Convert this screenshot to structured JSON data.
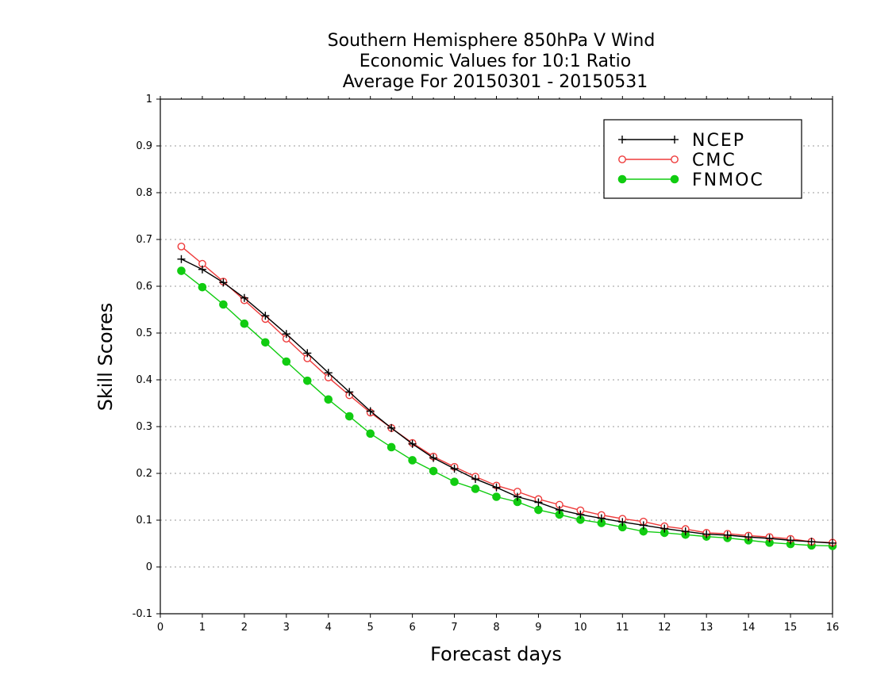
{
  "chart_data": {
    "type": "line",
    "title": "Southern Hemisphere 850hPa V Wind",
    "subtitle_lines": [
      "Economic Values for 10:1 Ratio",
      "Average For 20150301 - 20150531"
    ],
    "xlabel": "Forecast days",
    "ylabel": "Skill Scores",
    "xlim": [
      0,
      16
    ],
    "ylim": [
      -0.1,
      1
    ],
    "x_ticks": [
      0,
      1,
      2,
      3,
      4,
      5,
      6,
      7,
      8,
      9,
      10,
      11,
      12,
      13,
      14,
      15,
      16
    ],
    "y_ticks": [
      -0.1,
      0,
      0.1,
      0.2,
      0.3,
      0.4,
      0.5,
      0.6,
      0.7,
      0.8,
      0.9,
      1
    ],
    "y_tick_labels": [
      "-0.1",
      "0",
      "0.1",
      "0.2",
      "0.3",
      "0.4",
      "0.5",
      "0.6",
      "0.7",
      "0.8",
      "0.9",
      "1"
    ],
    "grid": true,
    "legend_position": "top-right",
    "x": [
      0.5,
      1,
      1.5,
      2,
      2.5,
      3,
      3.5,
      4,
      4.5,
      5,
      5.5,
      6,
      6.5,
      7,
      7.5,
      8,
      8.5,
      9,
      9.5,
      10,
      10.5,
      11,
      11.5,
      12,
      12.5,
      13,
      13.5,
      14,
      14.5,
      15,
      15.5,
      16
    ],
    "series": [
      {
        "name": "NCEP",
        "color": "#000000",
        "marker": "plus",
        "values": [
          0.658,
          0.636,
          0.608,
          0.575,
          0.537,
          0.498,
          0.457,
          0.415,
          0.374,
          0.333,
          0.297,
          0.263,
          0.233,
          0.21,
          0.188,
          0.17,
          0.15,
          0.138,
          0.122,
          0.112,
          0.104,
          0.096,
          0.089,
          0.082,
          0.076,
          0.07,
          0.068,
          0.064,
          0.061,
          0.057,
          0.054,
          0.051
        ]
      },
      {
        "name": "CMC",
        "color": "#ee3b3b",
        "marker": "open-circle",
        "values": [
          0.685,
          0.648,
          0.61,
          0.57,
          0.53,
          0.488,
          0.446,
          0.405,
          0.367,
          0.33,
          0.297,
          0.265,
          0.236,
          0.214,
          0.193,
          0.174,
          0.161,
          0.145,
          0.133,
          0.121,
          0.111,
          0.103,
          0.097,
          0.087,
          0.081,
          0.073,
          0.071,
          0.067,
          0.064,
          0.06,
          0.054,
          0.052
        ]
      },
      {
        "name": "FNMOC",
        "color": "#11cc11",
        "marker": "filled-circle",
        "values": [
          0.633,
          0.598,
          0.561,
          0.52,
          0.48,
          0.439,
          0.398,
          0.358,
          0.322,
          0.285,
          0.256,
          0.228,
          0.205,
          0.182,
          0.167,
          0.15,
          0.139,
          0.122,
          0.112,
          0.101,
          0.094,
          0.085,
          0.076,
          0.073,
          0.069,
          0.065,
          0.062,
          0.057,
          0.052,
          0.049,
          0.046,
          0.045
        ]
      }
    ]
  }
}
